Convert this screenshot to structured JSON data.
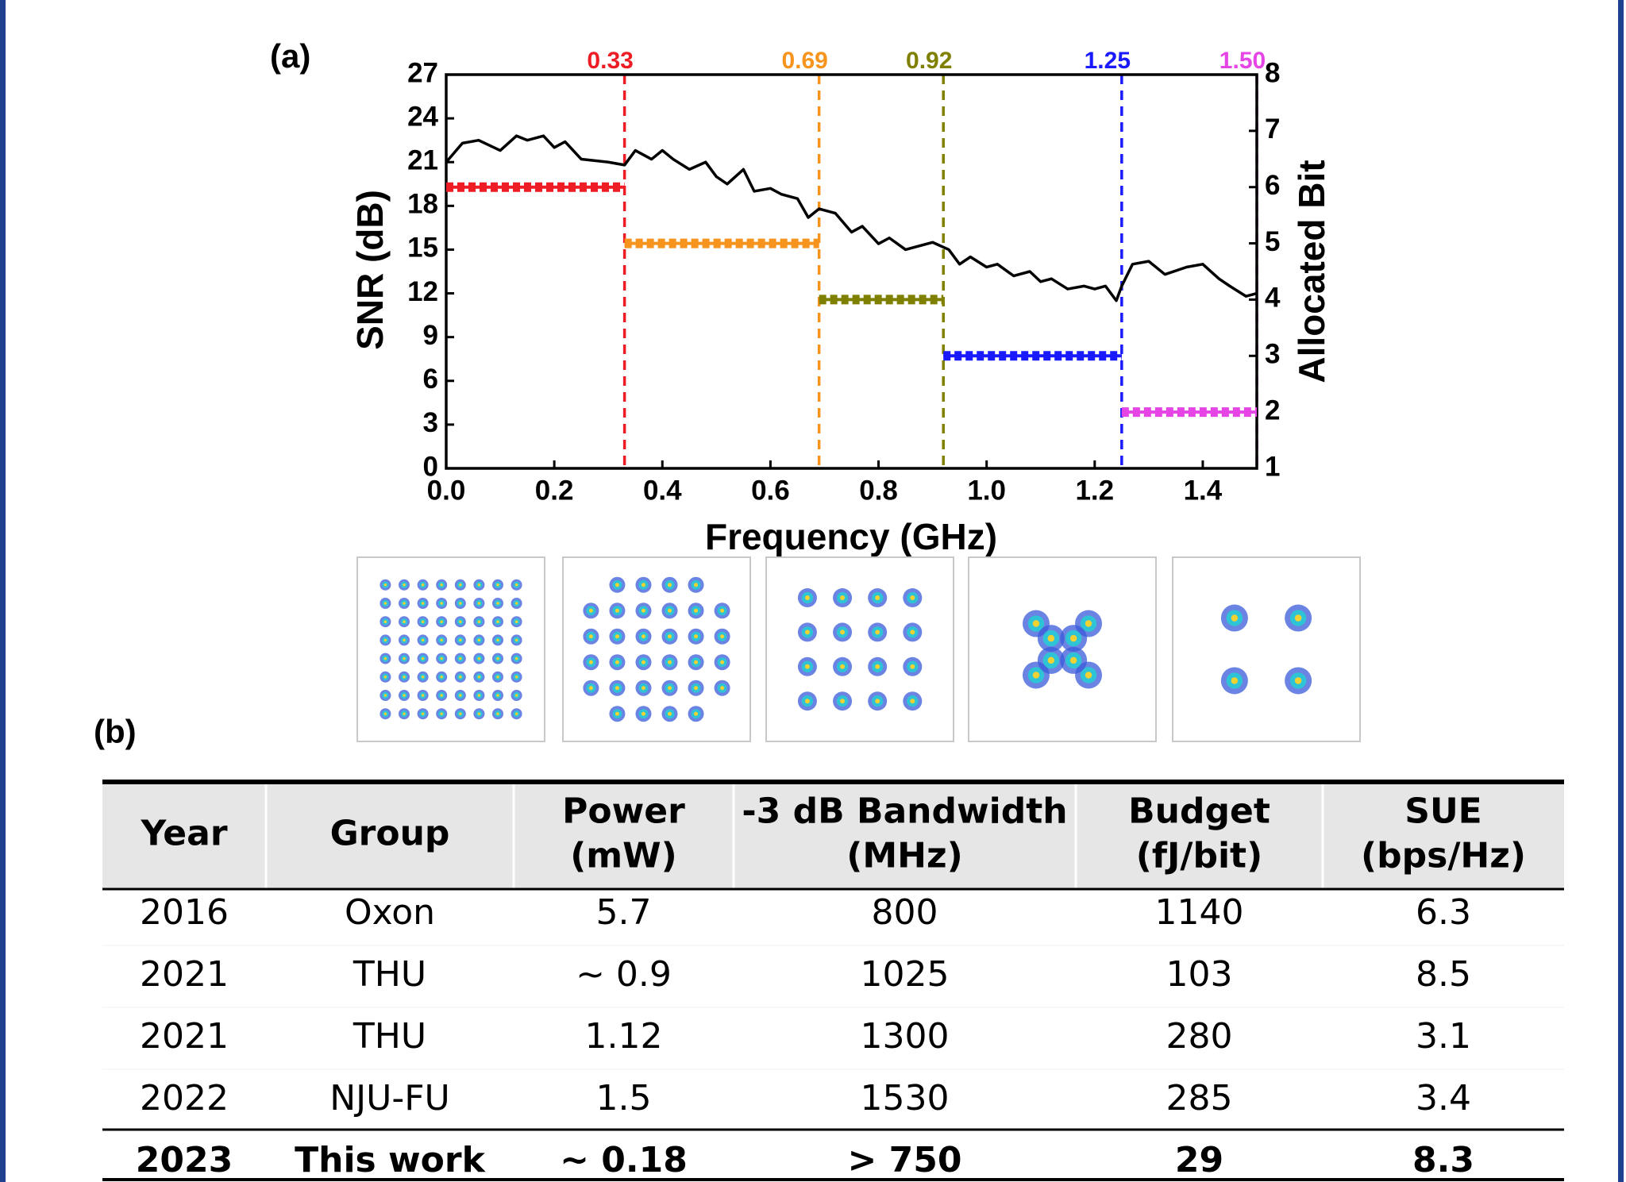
{
  "chart_data": {
    "type": "line",
    "panel_label": "(a)",
    "x_label": "Frequency (GHz)",
    "y_label": "SNR (dB)",
    "y2_label": "Allocated Bit",
    "xlim": [
      0,
      1.5
    ],
    "xticks": [
      {
        "value": 0,
        "label": "0.0"
      },
      0.2,
      0.4,
      0.6,
      0.8,
      {
        "value": 1,
        "label": "1.0"
      },
      1.2,
      1.4
    ],
    "ylim": [
      0,
      27
    ],
    "yticks": [
      0,
      3,
      6,
      9,
      12,
      15,
      18,
      21,
      24,
      27
    ],
    "y2lim": [
      1,
      8
    ],
    "y2ticks": [
      1,
      2,
      3,
      4,
      5,
      6,
      7,
      8
    ],
    "boundaries": [
      0.33,
      0.69,
      0.92,
      1.25,
      {
        "value": 1.5,
        "label": "1.50"
      }
    ],
    "boundary_colors": [
      "#ee1c25",
      "#f7941d",
      "#808000",
      "#1a1aff",
      "#e645e6"
    ],
    "series": [
      {
        "color": "#000000",
        "x": [
          0,
          0.03,
          0.06,
          0.1,
          0.13,
          0.15,
          0.18,
          0.2,
          0.22,
          0.25,
          0.3,
          0.33,
          0.35,
          0.38,
          0.4,
          0.42,
          0.45,
          0.48,
          0.5,
          0.52,
          0.55,
          0.57,
          0.6,
          0.62,
          0.65,
          0.67,
          0.69,
          0.72,
          0.75,
          0.77,
          0.8,
          0.82,
          0.85,
          0.88,
          0.9,
          0.93,
          0.95,
          0.97,
          1,
          1.02,
          1.05,
          1.08,
          1.1,
          1.12,
          1.15,
          1.18,
          1.2,
          1.22,
          1.24,
          1.25,
          1.27,
          1.3,
          1.33,
          1.37,
          1.4,
          1.43,
          1.45,
          1.48,
          1.5
        ],
        "values": [
          21,
          22.3,
          22.5,
          21.8,
          22.8,
          22.5,
          22.8,
          22,
          22.4,
          21.2,
          21,
          20.8,
          21.8,
          21.2,
          21.8,
          21.2,
          20.5,
          21,
          20,
          19.5,
          20.5,
          19,
          19.2,
          18.8,
          18.5,
          17.2,
          17.8,
          17.5,
          16.2,
          16.6,
          15.4,
          15.8,
          15,
          15.3,
          15.5,
          15,
          14,
          14.5,
          13.8,
          14,
          13.2,
          13.5,
          12.8,
          13,
          12.3,
          12.5,
          12.3,
          12.5,
          11.5,
          12.5,
          14,
          14.2,
          13.3,
          13.8,
          14,
          13,
          12.5,
          11.8,
          12
        ]
      },
      {
        "color": "#ee1c25",
        "axis": "y2",
        "x": [
          0,
          0.33
        ],
        "values": [
          6,
          6
        ]
      },
      {
        "color": "#f7941d",
        "axis": "y2",
        "x": [
          0.33,
          0.69
        ],
        "values": [
          5,
          5
        ]
      },
      {
        "color": "#808000",
        "axis": "y2",
        "x": [
          0.69,
          0.92
        ],
        "values": [
          4,
          4
        ]
      },
      {
        "color": "#1a1aff",
        "axis": "y2",
        "x": [
          0.92,
          1.25
        ],
        "values": [
          3,
          3
        ]
      },
      {
        "color": "#e645e6",
        "axis": "y2",
        "x": [
          1.25,
          1.5
        ],
        "values": [
          2,
          2
        ]
      }
    ]
  },
  "panel_b_label": "(b)",
  "table": {
    "headers": [
      [
        "Year"
      ],
      [
        "Group"
      ],
      [
        "Power",
        "(mW)"
      ],
      [
        "-3 dB Bandwidth",
        "(MHz)"
      ],
      [
        "Budget",
        "(fJ/bit)"
      ],
      [
        "SUE",
        "(bps/Hz)"
      ]
    ],
    "rows": [
      [
        "2016",
        "Oxon",
        "5.7",
        "800",
        "1140",
        "6.3"
      ],
      [
        "2021",
        "THU",
        "~ 0.9",
        "1025",
        "103",
        "8.5"
      ],
      [
        "2021",
        "THU",
        "1.12",
        "1300",
        "280",
        "3.1"
      ],
      [
        "2022",
        "NJU-FU",
        "1.5",
        "1530",
        "285",
        "3.4"
      ],
      [
        "2023",
        "This work",
        "~ 0.18",
        "> 750",
        "29",
        "8.3"
      ]
    ]
  }
}
